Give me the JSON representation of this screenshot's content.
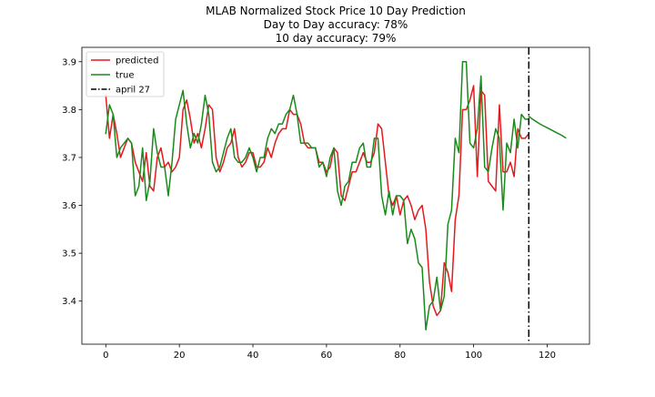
{
  "chart_data": {
    "type": "line",
    "title_lines": [
      "MLAB Normalized Stock Price 10 Day Prediction",
      "Day to Day accuracy: 78%",
      "10 day accuracy: 79%"
    ],
    "xlabel": "",
    "ylabel": "",
    "xlim": [
      -6.5,
      131.5
    ],
    "ylim": [
      3.31,
      3.93
    ],
    "x_ticks": [
      0,
      20,
      40,
      60,
      80,
      100,
      120
    ],
    "x_tick_labels": [
      "0",
      "20",
      "40",
      "60",
      "80",
      "100",
      "120"
    ],
    "y_ticks": [
      3.4,
      3.5,
      3.6,
      3.7,
      3.8,
      3.9
    ],
    "y_tick_labels": [
      "3.4",
      "3.5",
      "3.6",
      "3.7",
      "3.8",
      "3.9"
    ],
    "grid": false,
    "legend_position": "top-left",
    "colors": {
      "predicted": "#e41a1c",
      "true": "#1a8a1a",
      "vline": "#000000",
      "axes": "#000000"
    },
    "series": [
      {
        "name": "predicted",
        "color": "#e41a1c",
        "x": [
          0,
          1,
          2,
          3,
          4,
          5,
          6,
          7,
          8,
          9,
          10,
          11,
          12,
          13,
          14,
          15,
          16,
          17,
          18,
          19,
          20,
          21,
          22,
          23,
          24,
          25,
          26,
          27,
          28,
          29,
          30,
          31,
          32,
          33,
          34,
          35,
          36,
          37,
          38,
          39,
          40,
          41,
          42,
          43,
          44,
          45,
          46,
          47,
          48,
          49,
          50,
          51,
          52,
          53,
          54,
          55,
          56,
          57,
          58,
          59,
          60,
          61,
          62,
          63,
          64,
          65,
          66,
          67,
          68,
          69,
          70,
          71,
          72,
          73,
          74,
          75,
          76,
          77,
          78,
          79,
          80,
          81,
          82,
          83,
          84,
          85,
          86,
          87,
          88,
          89,
          90,
          91,
          92,
          93,
          94,
          95,
          96,
          97,
          98,
          99,
          100,
          101,
          102,
          103,
          104,
          105,
          106,
          107,
          108,
          109,
          110,
          111,
          112,
          113,
          114,
          115
        ],
        "y": [
          3.83,
          3.74,
          3.79,
          3.75,
          3.7,
          3.72,
          3.74,
          3.73,
          3.69,
          3.67,
          3.65,
          3.71,
          3.64,
          3.63,
          3.7,
          3.72,
          3.68,
          3.69,
          3.67,
          3.68,
          3.7,
          3.8,
          3.82,
          3.78,
          3.73,
          3.75,
          3.72,
          3.76,
          3.81,
          3.8,
          3.7,
          3.67,
          3.69,
          3.72,
          3.73,
          3.76,
          3.7,
          3.68,
          3.69,
          3.71,
          3.71,
          3.68,
          3.68,
          3.69,
          3.72,
          3.7,
          3.73,
          3.75,
          3.76,
          3.76,
          3.8,
          3.79,
          3.79,
          3.77,
          3.73,
          3.72,
          3.72,
          3.72,
          3.69,
          3.69,
          3.67,
          3.68,
          3.72,
          3.71,
          3.62,
          3.61,
          3.64,
          3.67,
          3.67,
          3.69,
          3.71,
          3.69,
          3.69,
          3.71,
          3.77,
          3.76,
          3.69,
          3.62,
          3.6,
          3.62,
          3.58,
          3.61,
          3.62,
          3.6,
          3.57,
          3.59,
          3.6,
          3.55,
          3.44,
          3.39,
          3.37,
          3.38,
          3.48,
          3.46,
          3.42,
          3.57,
          3.62,
          3.8,
          3.8,
          3.82,
          3.85,
          3.66,
          3.84,
          3.83,
          3.65,
          3.64,
          3.63,
          3.81,
          3.67,
          3.67,
          3.69,
          3.66,
          3.76,
          3.74,
          3.74,
          3.75
        ]
      },
      {
        "name": "true",
        "color": "#1a8a1a",
        "x": [
          0,
          1,
          2,
          3,
          4,
          5,
          6,
          7,
          8,
          9,
          10,
          11,
          12,
          13,
          14,
          15,
          16,
          17,
          18,
          19,
          20,
          21,
          22,
          23,
          24,
          25,
          26,
          27,
          28,
          29,
          30,
          31,
          32,
          33,
          34,
          35,
          36,
          37,
          38,
          39,
          40,
          41,
          42,
          43,
          44,
          45,
          46,
          47,
          48,
          49,
          50,
          51,
          52,
          53,
          54,
          55,
          56,
          57,
          58,
          59,
          60,
          61,
          62,
          63,
          64,
          65,
          66,
          67,
          68,
          69,
          70,
          71,
          72,
          73,
          74,
          75,
          76,
          77,
          78,
          79,
          80,
          81,
          82,
          83,
          84,
          85,
          86,
          87,
          88,
          89,
          90,
          91,
          92,
          93,
          94,
          95,
          96,
          97,
          98,
          99,
          100,
          101,
          102,
          103,
          104,
          105,
          106,
          107,
          108,
          109,
          110,
          111,
          112,
          113,
          114,
          115
        ],
        "y": [
          3.75,
          3.81,
          3.79,
          3.7,
          3.72,
          3.73,
          3.74,
          3.73,
          3.62,
          3.64,
          3.72,
          3.61,
          3.65,
          3.76,
          3.71,
          3.68,
          3.68,
          3.62,
          3.69,
          3.78,
          3.81,
          3.84,
          3.77,
          3.72,
          3.75,
          3.73,
          3.77,
          3.83,
          3.79,
          3.69,
          3.67,
          3.68,
          3.71,
          3.74,
          3.76,
          3.7,
          3.69,
          3.69,
          3.7,
          3.72,
          3.7,
          3.67,
          3.7,
          3.7,
          3.74,
          3.76,
          3.75,
          3.77,
          3.77,
          3.79,
          3.8,
          3.83,
          3.79,
          3.73,
          3.73,
          3.73,
          3.72,
          3.72,
          3.68,
          3.69,
          3.66,
          3.7,
          3.72,
          3.63,
          3.6,
          3.64,
          3.65,
          3.69,
          3.69,
          3.72,
          3.73,
          3.68,
          3.68,
          3.74,
          3.74,
          3.62,
          3.58,
          3.63,
          3.58,
          3.62,
          3.62,
          3.61,
          3.52,
          3.55,
          3.53,
          3.48,
          3.47,
          3.34,
          3.39,
          3.4,
          3.45,
          3.38,
          3.41,
          3.56,
          3.59,
          3.74,
          3.71,
          3.9,
          3.9,
          3.73,
          3.72,
          3.76,
          3.87,
          3.68,
          3.67,
          3.72,
          3.76,
          3.74,
          3.59,
          3.73,
          3.71,
          3.78,
          3.72,
          3.79,
          3.78,
          3.78
        ]
      },
      {
        "name": "true",
        "color": "#1a8a1a",
        "legend": false,
        "x": [
          115,
          116,
          117,
          118,
          119,
          120,
          121,
          122,
          123,
          124,
          125
        ],
        "y": [
          3.786,
          3.78,
          3.775,
          3.77,
          3.766,
          3.762,
          3.758,
          3.754,
          3.75,
          3.746,
          3.741
        ]
      }
    ],
    "vline": {
      "name": "april 27",
      "x": 115,
      "color": "#000000",
      "style": "dash-dot"
    },
    "legend_entries": [
      {
        "label": "predicted",
        "color": "#e41a1c",
        "style": "solid"
      },
      {
        "label": "true",
        "color": "#1a8a1a",
        "style": "solid"
      },
      {
        "label": "april 27",
        "color": "#000000",
        "style": "dash-dot"
      }
    ]
  }
}
